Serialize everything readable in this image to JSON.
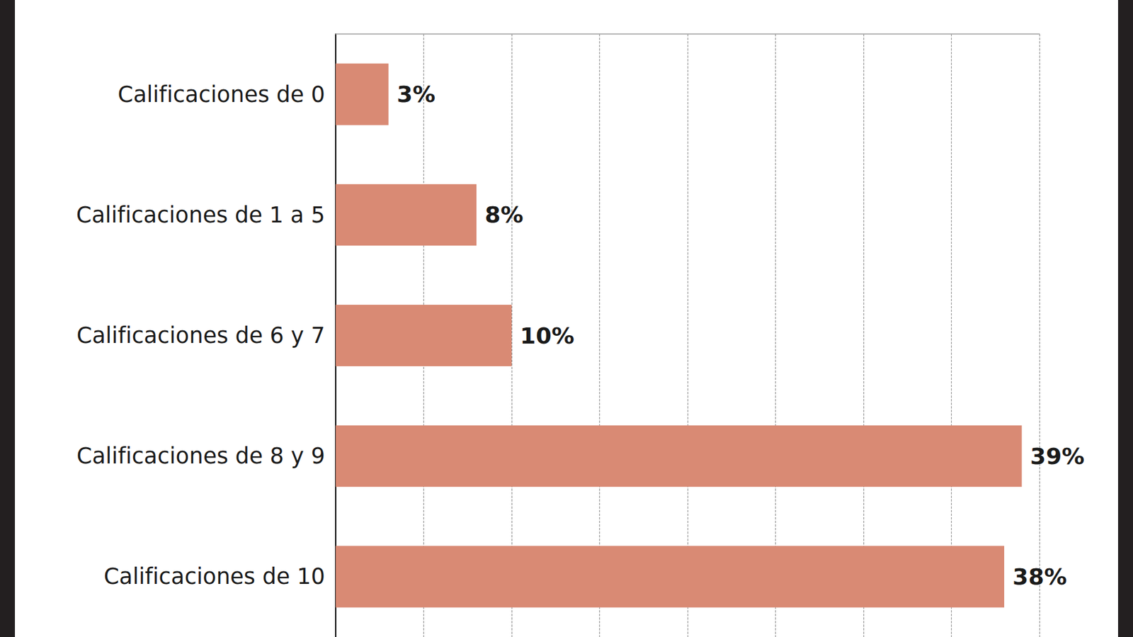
{
  "chart_data": {
    "type": "bar",
    "orientation": "horizontal",
    "categories": [
      "Calificaciones de 0",
      "Calificaciones de 1 a 5",
      "Calificaciones de 6 y 7",
      "Calificaciones de 8 y 9",
      "Calificaciones de 10"
    ],
    "values": [
      3,
      8,
      10,
      39,
      38
    ],
    "value_labels": [
      "3%",
      "8%",
      "10%",
      "39%",
      "38%"
    ],
    "color": "#d98a74",
    "xlim": [
      0,
      40
    ],
    "xticks": [
      0,
      5,
      10,
      15,
      20,
      25,
      30,
      35,
      40
    ],
    "grid": true,
    "data_labels": true,
    "tick_labels": "y"
  }
}
